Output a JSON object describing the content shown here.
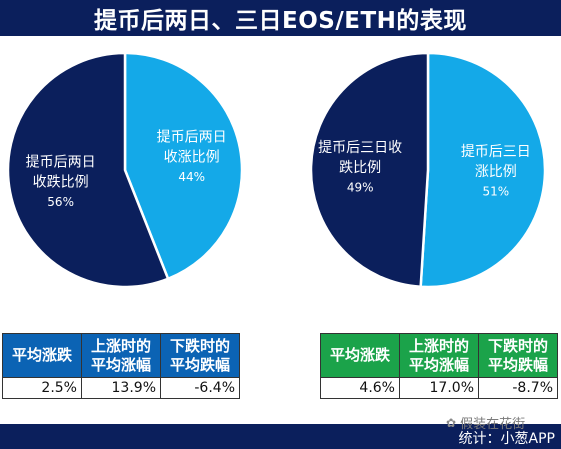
{
  "title": "提币后两日、三日EOS/ETH的表现",
  "chart_data": [
    {
      "type": "pie",
      "slices": [
        {
          "label_lines": [
            "提币后两日",
            "收涨比例"
          ],
          "value": 44,
          "value_text": "44%",
          "color": "#14a9e8"
        },
        {
          "label_lines": [
            "提币后两日",
            "收跌比例"
          ],
          "value": 56,
          "value_text": "56%",
          "color": "#0b1f5c"
        }
      ]
    },
    {
      "type": "pie",
      "slices": [
        {
          "label_lines": [
            "提币后三日",
            "涨比例"
          ],
          "value": 51,
          "value_text": "51%",
          "color": "#14a9e8"
        },
        {
          "label_lines": [
            "提币后三日收",
            "跌比例"
          ],
          "value": 49,
          "value_text": "49%",
          "color": "#0b1f5c"
        }
      ]
    }
  ],
  "tables": {
    "left": {
      "headers": [
        [
          "平均涨跌"
        ],
        [
          "上涨时的",
          "平均涨幅"
        ],
        [
          "下跌时的",
          "平均跌幅"
        ]
      ],
      "values": [
        "2.5%",
        "13.9%",
        "-6.4%"
      ],
      "header_color": "#0b63b4"
    },
    "right": {
      "headers": [
        [
          "平均涨跌"
        ],
        [
          "上涨时的",
          "平均涨幅"
        ],
        [
          "下跌时的",
          "平均跌幅"
        ]
      ],
      "values": [
        "4.6%",
        "17.0%",
        "-8.7%"
      ],
      "header_color": "#1ba34a"
    }
  },
  "watermark": {
    "text": "假装在花街",
    "icon": "wechat-icon"
  },
  "credit": "统计：小葱APP",
  "colors": {
    "dark_navy": "#0b1f5c",
    "sky_blue": "#14a9e8"
  }
}
